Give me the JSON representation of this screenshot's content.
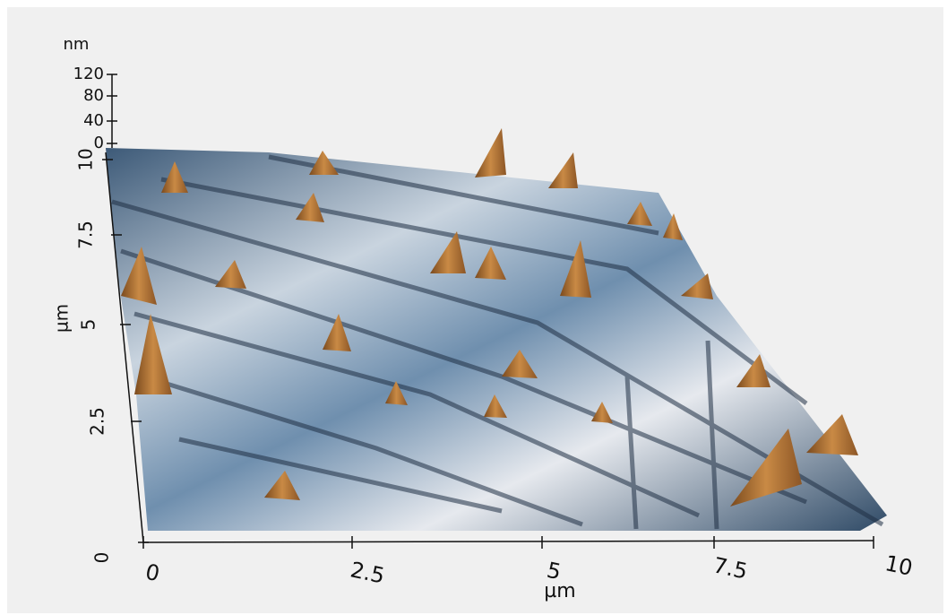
{
  "z_axis": {
    "label": "nm",
    "ticks": [
      "120",
      "80",
      "40",
      "0"
    ]
  },
  "y_axis": {
    "label": "µm",
    "ticks": [
      "0",
      "2.5",
      "5",
      "7.5",
      "10"
    ]
  },
  "x_axis": {
    "label": "µm",
    "ticks": [
      "0",
      "2.5",
      "5",
      "7.5",
      "10"
    ]
  }
}
